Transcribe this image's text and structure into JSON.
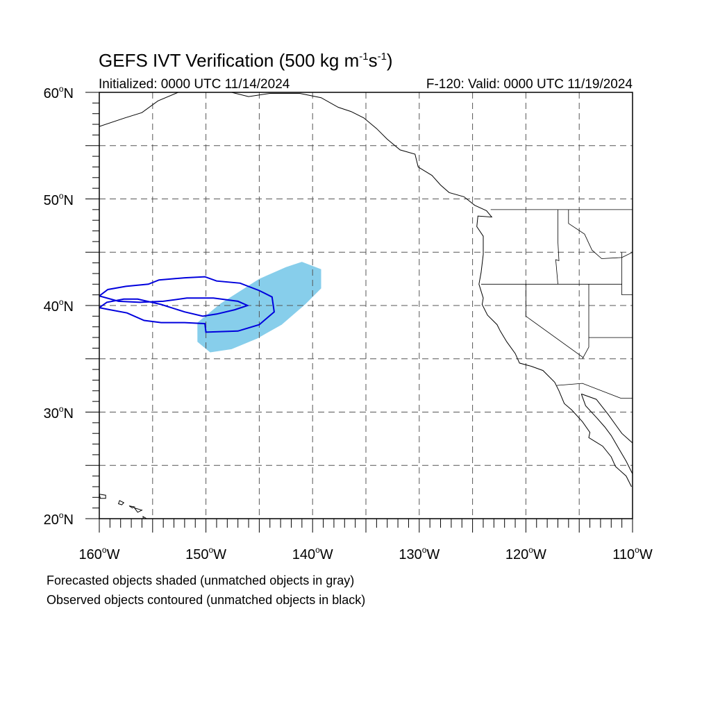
{
  "title": {
    "prefix": "GEFS IVT Verification (500 kg m",
    "exp1": "-1",
    "mid": "s",
    "exp2": "-1",
    "suffix": ")"
  },
  "initialized": "Initialized: 0000 UTC 11/14/2024",
  "valid": "F-120: Valid: 0000 UTC 11/19/2024",
  "map": {
    "lat_range": [
      20,
      60
    ],
    "lon_range": [
      -160,
      -110
    ],
    "grid_style": "dashed",
    "lat_labels": [
      {
        "value": 60,
        "text": "60",
        "hem": "N"
      },
      {
        "value": 50,
        "text": "50",
        "hem": "N"
      },
      {
        "value": 40,
        "text": "40",
        "hem": "N"
      },
      {
        "value": 30,
        "text": "30",
        "hem": "N"
      },
      {
        "value": 20,
        "text": "20",
        "hem": "N"
      }
    ],
    "lon_labels": [
      {
        "value": -160,
        "text": "160",
        "hem": "W"
      },
      {
        "value": -150,
        "text": "150",
        "hem": "W"
      },
      {
        "value": -140,
        "text": "140",
        "hem": "W"
      },
      {
        "value": -130,
        "text": "130",
        "hem": "W"
      },
      {
        "value": -120,
        "text": "120",
        "hem": "W"
      },
      {
        "value": -110,
        "text": "110",
        "hem": "W"
      }
    ],
    "forecast_object": {
      "color": "#87ceeb",
      "description_value": "matched forecast IVT object",
      "polygon": [
        [
          -150.8,
          37.0
        ],
        [
          -150.8,
          38.4
        ],
        [
          -148.6,
          40.2
        ],
        [
          -145.0,
          42.5
        ],
        [
          -142.5,
          43.6
        ],
        [
          -141.0,
          44.1
        ],
        [
          -139.2,
          43.4
        ],
        [
          -139.2,
          41.6
        ],
        [
          -140.7,
          40.1
        ],
        [
          -142.9,
          38.2
        ],
        [
          -145.2,
          36.9
        ],
        [
          -147.6,
          35.9
        ],
        [
          -149.6,
          35.6
        ],
        [
          -150.8,
          36.6
        ]
      ]
    },
    "observed_object": {
      "color": "#0000dd",
      "polygon": [
        [
          -160.0,
          40.9
        ],
        [
          -159.2,
          41.5
        ],
        [
          -157.5,
          41.8
        ],
        [
          -155.4,
          42.0
        ],
        [
          -154.4,
          42.4
        ],
        [
          -152.0,
          42.6
        ],
        [
          -150.1,
          42.7
        ],
        [
          -149.0,
          42.3
        ],
        [
          -146.8,
          42.1
        ],
        [
          -145.0,
          41.4
        ],
        [
          -143.8,
          40.8
        ],
        [
          -143.6,
          39.4
        ],
        [
          -145.0,
          38.2
        ],
        [
          -147.0,
          37.6
        ],
        [
          -150.0,
          37.5
        ],
        [
          -150.1,
          38.3
        ],
        [
          -152.0,
          38.4
        ],
        [
          -154.2,
          38.4
        ],
        [
          -155.8,
          38.6
        ],
        [
          -157.4,
          39.3
        ],
        [
          -159.0,
          39.6
        ],
        [
          -160.0,
          39.8
        ],
        [
          -159.3,
          40.3
        ],
        [
          -157.7,
          40.6
        ],
        [
          -156.4,
          40.6
        ],
        [
          -154.2,
          40.1
        ],
        [
          -152.0,
          39.4
        ],
        [
          -150.3,
          39.0
        ],
        [
          -149.0,
          39.2
        ],
        [
          -147.3,
          39.6
        ],
        [
          -146.1,
          40.0
        ],
        [
          -147.0,
          40.4
        ],
        [
          -149.3,
          40.7
        ],
        [
          -151.8,
          40.7
        ],
        [
          -154.0,
          40.4
        ],
        [
          -156.2,
          40.3
        ],
        [
          -158.2,
          40.4
        ],
        [
          -160.0,
          40.9
        ]
      ]
    },
    "coastline": [
      [
        -160.0,
        56.8
      ],
      [
        -157.6,
        57.6
      ],
      [
        -156.0,
        58.1
      ],
      [
        -154.5,
        59.2
      ],
      [
        -152.6,
        60.0
      ]
    ],
    "coastline2": [
      [
        -147.6,
        60.0
      ],
      [
        -146.0,
        59.6
      ],
      [
        -144.0,
        59.9
      ],
      [
        -141.2,
        59.9
      ],
      [
        -139.2,
        59.5
      ],
      [
        -137.6,
        58.6
      ],
      [
        -136.4,
        58.2
      ],
      [
        -135.2,
        57.6
      ],
      [
        -134.0,
        56.6
      ],
      [
        -133.0,
        55.6
      ],
      [
        -131.8,
        54.6
      ],
      [
        -130.4,
        54.2
      ],
      [
        -130.1,
        53.0
      ],
      [
        -128.8,
        52.2
      ],
      [
        -128.0,
        51.3
      ],
      [
        -127.2,
        50.6
      ],
      [
        -125.8,
        50.2
      ],
      [
        -124.8,
        49.4
      ],
      [
        -123.7,
        48.9
      ],
      [
        -123.2,
        48.3
      ],
      [
        -124.5,
        48.4
      ],
      [
        -124.6,
        47.4
      ],
      [
        -124.0,
        46.5
      ],
      [
        -124.0,
        44.8
      ],
      [
        -124.2,
        43.1
      ],
      [
        -124.4,
        42.0
      ],
      [
        -124.0,
        40.7
      ],
      [
        -124.1,
        40.1
      ],
      [
        -123.6,
        39.1
      ],
      [
        -122.7,
        38.2
      ],
      [
        -122.4,
        37.6
      ],
      [
        -121.8,
        36.6
      ],
      [
        -121.0,
        35.5
      ],
      [
        -120.6,
        34.6
      ],
      [
        -119.5,
        34.3
      ],
      [
        -118.4,
        33.9
      ],
      [
        -117.3,
        32.8
      ],
      [
        -116.9,
        32.0
      ],
      [
        -116.4,
        30.8
      ],
      [
        -115.7,
        30.2
      ],
      [
        -114.7,
        29.1
      ],
      [
        -114.0,
        28.1
      ],
      [
        -114.1,
        27.6
      ],
      [
        -112.8,
        26.8
      ],
      [
        -112.0,
        25.8
      ],
      [
        -111.6,
        24.9
      ],
      [
        -110.6,
        24.0
      ],
      [
        -110.1,
        23.0
      ]
    ],
    "gulf_coast": [
      [
        -114.8,
        31.7
      ],
      [
        -114.4,
        30.6
      ],
      [
        -113.3,
        29.4
      ],
      [
        -112.6,
        28.6
      ],
      [
        -112.0,
        27.8
      ],
      [
        -111.3,
        26.6
      ],
      [
        -110.6,
        25.4
      ],
      [
        -110.2,
        24.6
      ],
      [
        -110.0,
        24.2
      ]
    ],
    "mainland_coast": [
      [
        -114.8,
        31.7
      ],
      [
        -113.4,
        31.2
      ],
      [
        -112.3,
        29.8
      ],
      [
        -111.0,
        28.0
      ],
      [
        -110.0,
        27.1
      ]
    ],
    "hawaii": [
      [
        [
          -160.0,
          22.3
        ],
        [
          -159.4,
          22.2
        ],
        [
          -159.4,
          21.9
        ],
        [
          -159.9,
          21.9
        ],
        [
          -160.0,
          22.3
        ]
      ],
      [
        [
          -158.1,
          21.7
        ],
        [
          -157.7,
          21.5
        ],
        [
          -157.9,
          21.3
        ],
        [
          -158.2,
          21.4
        ],
        [
          -158.1,
          21.7
        ]
      ],
      [
        [
          -157.2,
          21.2
        ],
        [
          -156.7,
          21.1
        ],
        [
          -156.9,
          21.0
        ],
        [
          -157.2,
          21.2
        ]
      ],
      [
        [
          -156.7,
          21.0
        ],
        [
          -156.0,
          20.8
        ],
        [
          -156.4,
          20.6
        ],
        [
          -156.7,
          21.0
        ]
      ],
      [
        [
          -155.9,
          20.2
        ],
        [
          -154.9,
          19.6
        ],
        [
          -155.8,
          19.0
        ],
        [
          -155.9,
          20.2
        ]
      ]
    ],
    "borders": [
      [
        [
          -123.3,
          49.0
        ],
        [
          -110.0,
          49.0
        ]
      ],
      [
        [
          -124.2,
          42.0
        ],
        [
          -111.0,
          42.0
        ]
      ],
      [
        [
          -120.0,
          42.0
        ],
        [
          -120.0,
          39.0
        ],
        [
          -114.6,
          35.1
        ]
      ],
      [
        [
          -117.0,
          49.0
        ],
        [
          -117.0,
          46.0
        ],
        [
          -116.9,
          44.2
        ],
        [
          -117.2,
          44.3
        ],
        [
          -117.0,
          42.0
        ]
      ],
      [
        [
          -114.1,
          42.0
        ],
        [
          -114.1,
          36.1
        ],
        [
          -114.7,
          35.0
        ]
      ],
      [
        [
          -114.1,
          37.0
        ],
        [
          -110.0,
          37.0
        ]
      ],
      [
        [
          -117.1,
          32.5
        ],
        [
          -114.7,
          32.7
        ],
        [
          -111.1,
          31.3
        ],
        [
          -110.0,
          31.3
        ]
      ],
      [
        [
          -111.0,
          44.5
        ],
        [
          -110.0,
          45.0
        ]
      ],
      [
        [
          -116.0,
          49.0
        ],
        [
          -116.0,
          47.7
        ],
        [
          -114.5,
          46.7
        ],
        [
          -113.8,
          45.2
        ],
        [
          -112.9,
          44.4
        ],
        [
          -111.0,
          44.5
        ]
      ],
      [
        [
          -111.0,
          45.0
        ],
        [
          -111.0,
          41.0
        ],
        [
          -110.0,
          41.0
        ]
      ]
    ]
  },
  "notes": {
    "line1": "Forecasted objects shaded (unmatched objects in gray)",
    "line2": "Observed objects contoured (unmatched objects in black)"
  }
}
